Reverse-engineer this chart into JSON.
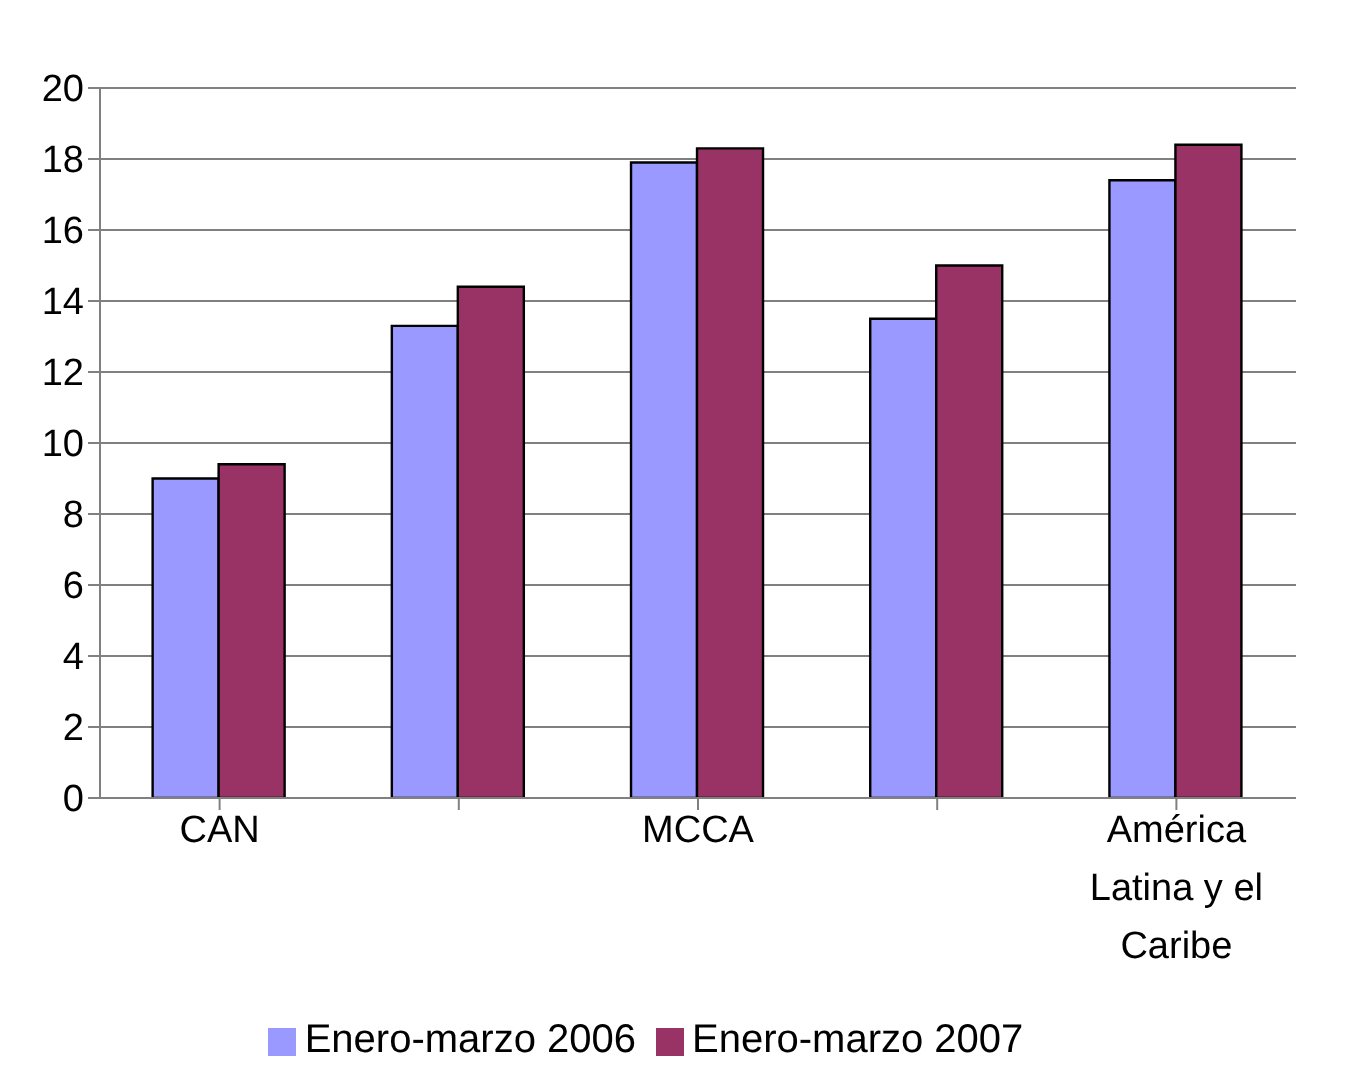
{
  "chart_data": {
    "type": "bar",
    "categories": [
      "CAN",
      null,
      "MCCA",
      null,
      "América Latina y el Caribe"
    ],
    "series": [
      {
        "name": "Enero-marzo 2006",
        "color": "#9999ff",
        "values": [
          9.0,
          13.3,
          17.9,
          13.5,
          17.4
        ]
      },
      {
        "name": "Enero-marzo 2007",
        "color": "#993366",
        "values": [
          9.4,
          14.4,
          18.3,
          15.0,
          18.4
        ]
      }
    ],
    "ylim": [
      0,
      20
    ],
    "yticks": [
      0,
      2,
      4,
      6,
      8,
      10,
      12,
      14,
      16,
      18,
      20
    ],
    "grid": "y",
    "legend": "bottom"
  }
}
